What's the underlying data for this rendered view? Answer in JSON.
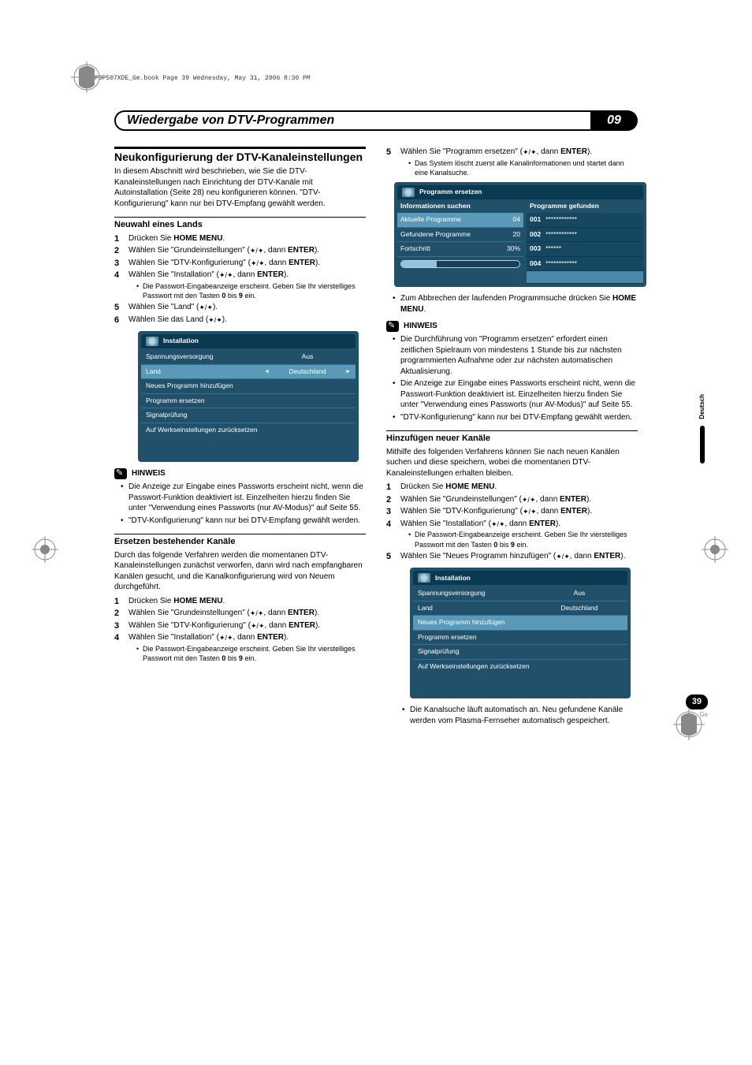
{
  "meta": {
    "book_header": "PDP507XDE_Ge.book  Page 39  Wednesday, May 31, 2006  8:30 PM"
  },
  "header": {
    "title": "Wiedergabe von DTV-Programmen",
    "chapter": "09"
  },
  "left": {
    "h2": "Neukonfigurierung der DTV-Kanaleinstellungen",
    "intro": "In diesem Abschnitt wird beschrieben, wie Sie die DTV-Kanaleinstellungen nach Einrichtung der DTV-Kanäle mit Autoinstallation (Seite 28) neu konfigurieren können. \"DTV-Konfigurierung\" kann nur bei DTV-Empfang gewählt werden.",
    "h3a": "Neuwahl eines Lands",
    "steps_a": [
      "Drücken Sie HOME MENU.",
      "Wählen Sie \"Grundeinstellungen\" (↑/↓, dann ENTER).",
      "Wählen Sie \"DTV-Konfigurierung\" (↑/↓, dann ENTER).",
      "Wählen Sie \"Installation\" (↑/↓, dann ENTER).",
      "Wählen Sie \"Land\" (↑/↓).",
      "Wählen Sie das Land (←/→)."
    ],
    "step_a_note": "Die Passwort-Eingabeanzeige erscheint. Geben Sie Ihr vierstelliges Passwort mit den Tasten 0 bis 9 ein.",
    "note_label": "HINWEIS",
    "note_a": [
      "Die Anzeige zur Eingabe eines Passworts erscheint nicht, wenn die Passwort-Funktion deaktiviert ist. Einzelheiten hierzu finden Sie unter \"Verwendung eines Passworts (nur AV-Modus)\" auf Seite 55.",
      "\"DTV-Konfigurierung\" kann nur bei DTV-Empfang gewählt werden."
    ],
    "h3b": "Ersetzen bestehender Kanäle",
    "intro_b": "Durch das folgende Verfahren werden die momentanen DTV-Kanaleinstellungen zunächst verworfen, dann wird nach empfangbaren Kanälen gesucht, und die Kanalkonfigurierung wird von Neuem durchgeführt.",
    "steps_b": [
      "Drücken Sie HOME MENU.",
      "Wählen Sie \"Grundeinstellungen\" (↑/↓, dann ENTER).",
      "Wählen Sie \"DTV-Konfigurierung\" (↑/↓, dann ENTER).",
      "Wählen Sie \"Installation\" (↑/↓, dann ENTER)."
    ],
    "step_b_note": "Die Passwort-Eingabeanzeige erscheint. Geben Sie Ihr vierstelliges Passwort mit den Tasten 0 bis 9 ein.",
    "osd1": {
      "title": "Installation",
      "rows": [
        {
          "k": "Spannungsversorgung",
          "v": "Aus",
          "hl": false,
          "arrows": false
        },
        {
          "k": "Land",
          "v": "Deutschland",
          "hl": true,
          "arrows": true
        },
        {
          "k": "Neues Programm hinzufügen",
          "v": "",
          "hl": false,
          "arrows": false
        },
        {
          "k": "Programm ersetzen",
          "v": "",
          "hl": false,
          "arrows": false
        },
        {
          "k": "Signalprüfung",
          "v": "",
          "hl": false,
          "arrows": false
        },
        {
          "k": "Auf Werkseinstellungen zurücksetzen",
          "v": "",
          "hl": false,
          "arrows": false
        }
      ]
    }
  },
  "right": {
    "step5": "Wählen Sie \"Programm ersetzen\" (↑/↓, dann ENTER).",
    "step5_note": "Das System löscht zuerst alle Kanalinformationen und startet dann eine Kanalsuche.",
    "osd2": {
      "title": "Programm ersetzen",
      "left_head": "Informationen suchen",
      "right_head": "Programme gefunden",
      "left_rows": [
        {
          "k": "Aktuelle Programme",
          "v": "04"
        },
        {
          "k": "Gefundene Programme",
          "v": "20"
        },
        {
          "k": "Fortschritt",
          "v": "30%"
        }
      ],
      "progress_pct": 30,
      "right_rows": [
        {
          "num": "001",
          "name": "************"
        },
        {
          "num": "002",
          "name": "************"
        },
        {
          "num": "003",
          "name": "******"
        },
        {
          "num": "004",
          "name": "************"
        }
      ]
    },
    "after_osd2": "Zum Abbrechen der laufenden Programmsuche drücken Sie HOME MENU.",
    "note_b": [
      "Die Durchführung von \"Programm ersetzen\" erfordert einen zeitlichen Spielraum von mindestens 1 Stunde bis zur nächsten programmierten Aufnahme oder zur nächsten automatischen Aktualisierung.",
      "Die Anzeige zur Eingabe eines Passworts erscheint nicht, wenn die Passwort-Funktion deaktiviert ist. Einzelheiten hierzu finden Sie unter \"Verwendung eines Passworts (nur AV-Modus)\" auf Seite 55.",
      "\"DTV-Konfigurierung\" kann nur bei DTV-Empfang gewählt werden."
    ],
    "h3c": "Hinzufügen neuer Kanäle",
    "intro_c": "Mithilfe des folgenden Verfahrens können Sie nach neuen Kanälen suchen und diese speichern, wobei die momentanen DTV-Kanaleinstellungen erhalten bleiben.",
    "steps_c": [
      "Drücken Sie HOME MENU.",
      "Wählen Sie \"Grundeinstellungen\" (↑/↓, dann ENTER).",
      "Wählen Sie \"DTV-Konfigurierung\" (↑/↓, dann ENTER).",
      "Wählen Sie \"Installation\" (↑/↓, dann ENTER).",
      "Wählen Sie \"Neues Programm hinzufügen\" (↑/↓, dann ENTER)."
    ],
    "step_c_note": "Die Passwort-Eingabeanzeige erscheint. Geben Sie Ihr vierstelliges Passwort mit den Tasten 0 bis 9 ein.",
    "osd3": {
      "title": "Installation",
      "rows": [
        {
          "k": "Spannungsversorgung",
          "v": "Aus",
          "hl": false
        },
        {
          "k": "Land",
          "v": "Deutschland",
          "hl": false
        },
        {
          "k": "Neues Programm hinzufügen",
          "v": "",
          "hl": true
        },
        {
          "k": "Programm ersetzen",
          "v": "",
          "hl": false
        },
        {
          "k": "Signalprüfung",
          "v": "",
          "hl": false
        },
        {
          "k": "Auf Werkseinstellungen zurücksetzen",
          "v": "",
          "hl": false
        }
      ]
    },
    "after_osd3": "Die Kanalsuche läuft automatisch an. Neu gefundene Kanäle werden vom Plasma-Fernseher automatisch gespeichert."
  },
  "side": {
    "lang": "Deutsch"
  },
  "footer": {
    "page": "39",
    "loc": "Ge"
  },
  "colors": {
    "osd_bg": "#20506a",
    "osd_row_border": "#3a7090",
    "osd_highlight": "#5a9ab8",
    "osd_dark": "#0a3a52",
    "text": "#000000",
    "crop": "#888888"
  }
}
